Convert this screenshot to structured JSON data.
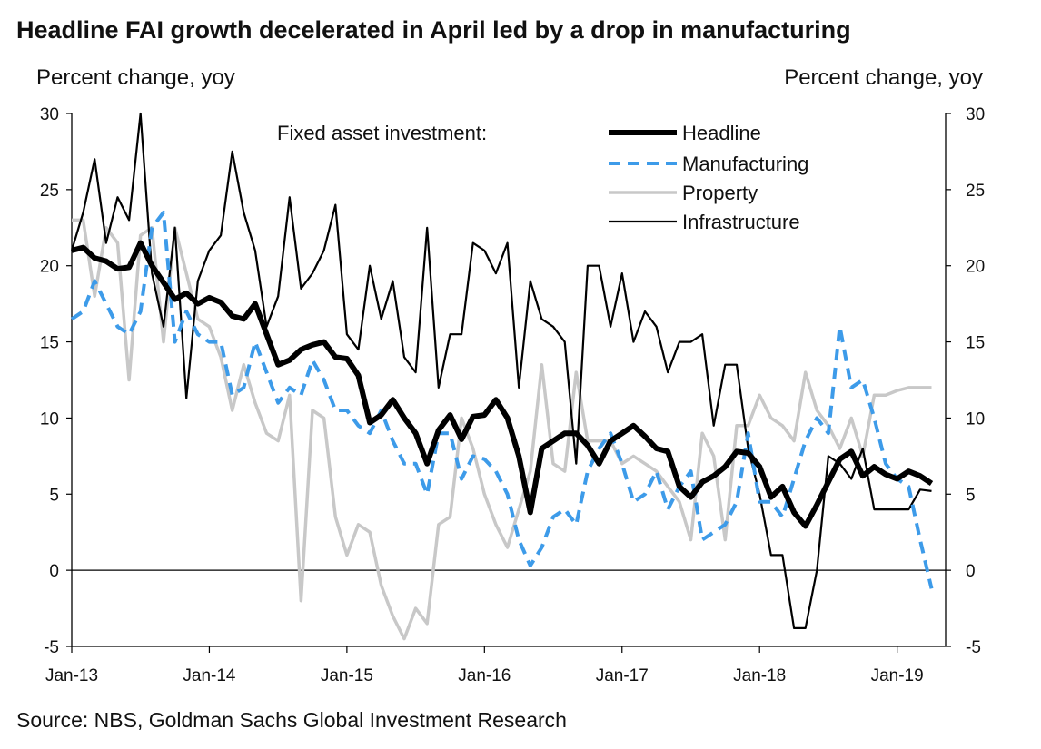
{
  "title": "Headline FAI growth decelerated in April led by a drop in manufacturing",
  "source": "Source: NBS, Goldman Sachs Global Investment Research",
  "chart_data": {
    "type": "line",
    "title": "Headline FAI growth decelerated in April led by a drop in manufacturing",
    "ylabel_left": "Percent change, yoy",
    "ylabel_right": "Percent change, yoy",
    "ylim": [
      -5,
      30
    ],
    "yticks": [
      -5,
      0,
      5,
      10,
      15,
      20,
      25,
      30
    ],
    "xticks": [
      "Jan-13",
      "Jan-14",
      "Jan-15",
      "Jan-16",
      "Jan-17",
      "Jan-18",
      "Jan-19"
    ],
    "x_unit": "month",
    "x": [
      "2013-01",
      "2013-02",
      "2013-03",
      "2013-04",
      "2013-05",
      "2013-06",
      "2013-07",
      "2013-08",
      "2013-09",
      "2013-10",
      "2013-11",
      "2013-12",
      "2014-01",
      "2014-02",
      "2014-03",
      "2014-04",
      "2014-05",
      "2014-06",
      "2014-07",
      "2014-08",
      "2014-09",
      "2014-10",
      "2014-11",
      "2014-12",
      "2015-01",
      "2015-02",
      "2015-03",
      "2015-04",
      "2015-05",
      "2015-06",
      "2015-07",
      "2015-08",
      "2015-09",
      "2015-10",
      "2015-11",
      "2015-12",
      "2016-01",
      "2016-02",
      "2016-03",
      "2016-04",
      "2016-05",
      "2016-06",
      "2016-07",
      "2016-08",
      "2016-09",
      "2016-10",
      "2016-11",
      "2016-12",
      "2017-01",
      "2017-02",
      "2017-03",
      "2017-04",
      "2017-05",
      "2017-06",
      "2017-07",
      "2017-08",
      "2017-09",
      "2017-10",
      "2017-11",
      "2017-12",
      "2018-01",
      "2018-02",
      "2018-03",
      "2018-04",
      "2018-05",
      "2018-06",
      "2018-07",
      "2018-08",
      "2018-09",
      "2018-10",
      "2018-11",
      "2018-12",
      "2019-01",
      "2019-02",
      "2019-03",
      "2019-04"
    ],
    "zero_line": true,
    "grid": false,
    "legend_header": "Fixed asset investment:",
    "legend_position": "top-right",
    "series": [
      {
        "name": "Headline",
        "color": "#000000",
        "style": "solid",
        "weight": "thick",
        "values": [
          21.0,
          21.2,
          20.5,
          20.3,
          19.8,
          19.9,
          21.5,
          20.0,
          18.9,
          17.8,
          18.2,
          17.5,
          17.9,
          17.6,
          16.7,
          16.5,
          17.5,
          15.5,
          13.5,
          13.8,
          14.5,
          14.8,
          15.0,
          14.0,
          13.9,
          12.8,
          9.7,
          10.2,
          11.2,
          10.0,
          9.0,
          7.0,
          9.2,
          10.2,
          8.6,
          10.1,
          10.2,
          11.2,
          10.0,
          7.5,
          3.8,
          8.0,
          8.5,
          9.0,
          9.0,
          8.2,
          7.0,
          8.5,
          9.0,
          9.5,
          8.8,
          8.0,
          7.8,
          5.5,
          4.8,
          5.8,
          6.2,
          6.8,
          7.8,
          7.7,
          6.8,
          4.8,
          5.5,
          3.8,
          2.9,
          4.3,
          5.8,
          7.3,
          7.8,
          6.2,
          6.8,
          6.3,
          6.0,
          6.5,
          6.2,
          5.7
        ]
      },
      {
        "name": "Manufacturing",
        "color": "#3D9BE9",
        "style": "dashed",
        "weight": "medium",
        "values": [
          16.5,
          17.0,
          19.0,
          17.5,
          16.0,
          15.5,
          17.0,
          22.5,
          23.5,
          15.0,
          17.0,
          15.5,
          15.0,
          15.0,
          11.5,
          12.0,
          15.0,
          13.0,
          11.0,
          12.0,
          11.5,
          13.8,
          12.5,
          10.5,
          10.5,
          9.5,
          9.0,
          10.5,
          8.5,
          7.0,
          7.0,
          5.0,
          9.0,
          9.0,
          6.0,
          7.5,
          7.3,
          6.5,
          5.0,
          2.0,
          0.3,
          1.5,
          3.5,
          4.0,
          3.0,
          6.5,
          8.0,
          9.0,
          7.0,
          4.5,
          5.0,
          6.5,
          4.0,
          5.5,
          6.5,
          2.0,
          2.5,
          3.0,
          4.5,
          9.0,
          4.5,
          4.5,
          3.5,
          6.0,
          8.5,
          10.0,
          9.0,
          16.0,
          12.0,
          12.5,
          10.0,
          7.0,
          6.0,
          5.5,
          2.0,
          -1.2
        ]
      },
      {
        "name": "Property",
        "color": "#C8C8C8",
        "style": "solid",
        "weight": "medium",
        "values": [
          23.0,
          23.0,
          18.0,
          22.5,
          21.5,
          12.5,
          22.0,
          22.5,
          15.0,
          22.5,
          19.5,
          16.5,
          16.0,
          14.0,
          10.5,
          13.5,
          11.0,
          9.0,
          8.5,
          11.5,
          -2.0,
          10.5,
          10.0,
          3.5,
          1.0,
          3.0,
          2.5,
          -1.0,
          -3.0,
          -4.5,
          -2.5,
          -3.5,
          3.0,
          3.5,
          10.0,
          8.0,
          5.0,
          3.0,
          1.5,
          4.0,
          6.5,
          13.5,
          7.0,
          6.5,
          13.0,
          8.5,
          8.5,
          8.5,
          7.0,
          7.5,
          7.0,
          6.5,
          5.5,
          4.5,
          2.0,
          9.0,
          7.5,
          2.0,
          9.5,
          9.5,
          11.5,
          10.0,
          9.5,
          8.5,
          13.0,
          10.5,
          9.5,
          8.0,
          10.0,
          7.5,
          11.5,
          11.5,
          11.8,
          12.0,
          12.0,
          12.0
        ]
      },
      {
        "name": "Infrastructure",
        "color": "#000000",
        "style": "solid",
        "weight": "thin",
        "values": [
          21.0,
          23.5,
          27.0,
          21.5,
          24.5,
          23.0,
          30.0,
          19.5,
          16.0,
          22.5,
          11.3,
          19.0,
          21.0,
          22.0,
          27.5,
          23.5,
          21.0,
          16.0,
          18.0,
          24.5,
          18.5,
          19.5,
          21.0,
          24.0,
          15.5,
          14.5,
          20.0,
          16.5,
          19.0,
          14.0,
          13.0,
          22.5,
          12.0,
          15.5,
          15.5,
          21.5,
          21.0,
          19.5,
          21.5,
          12.0,
          19.0,
          16.5,
          16.0,
          15.0,
          7.0,
          20.0,
          20.0,
          16.0,
          19.5,
          15.0,
          17.0,
          16.0,
          13.0,
          15.0,
          15.0,
          15.5,
          9.5,
          13.5,
          13.5,
          8.0,
          5.0,
          1.0,
          1.0,
          -3.8,
          -3.8,
          0.0,
          7.5,
          7.0,
          6.0,
          8.0,
          4.0,
          4.0,
          4.0,
          4.0,
          5.3,
          5.2
        ]
      }
    ]
  }
}
